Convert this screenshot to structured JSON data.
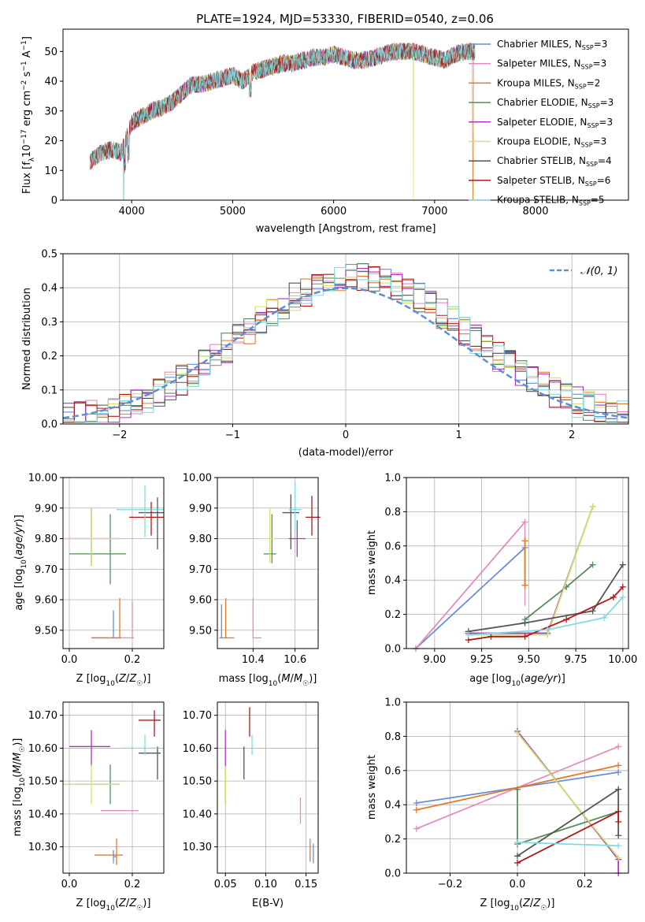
{
  "chart_data": [
    {
      "id": "spectrum",
      "type": "line",
      "title": "PLATE=1924, MJD=53330, FIBERID=0540, z=0.06",
      "xlabel": "wavelength [Angstrom, rest frame]",
      "ylabel": "Flux [f_λ 10^-17 erg cm^-2 s^-1 A^-1]",
      "xlim": [
        3320,
        8920
      ],
      "ylim": [
        0,
        57.5
      ],
      "xticks": [
        4000,
        5000,
        6000,
        7000,
        8000
      ],
      "yticks": [
        0,
        10,
        20,
        30,
        40,
        50
      ],
      "grid": false,
      "legend_position": "top-right",
      "continuum": {
        "x": [
          3590,
          3700,
          3800,
          3900,
          4000,
          4100,
          4200,
          4300,
          4400,
          4500,
          4600,
          4700,
          4800,
          4900,
          5000,
          5100,
          5200,
          5300,
          5400,
          5500,
          5600,
          5700,
          5800,
          5900,
          6000,
          6100,
          6200,
          6300,
          6400,
          6500,
          6600,
          6700,
          6800,
          6900,
          7000,
          7100,
          7200,
          7300,
          7400
        ],
        "y": [
          13,
          16,
          17,
          16,
          26,
          28,
          30,
          31,
          33,
          36,
          39,
          39,
          40,
          41,
          42,
          40,
          43,
          44,
          45,
          46,
          46,
          47,
          48,
          48,
          49,
          48,
          47,
          47,
          48,
          49,
          50,
          50,
          50,
          49,
          48,
          47,
          49,
          50,
          50
        ]
      },
      "series": [
        {
          "name": "Chabrier MILES, N_SSP=3",
          "color": "#6a8ed6",
          "label_main": "Chabrier MILES, N",
          "label_sub": "SSP",
          "label_tail": "=3"
        },
        {
          "name": "Salpeter MILES, N_SSP=3",
          "color": "#e38bc0",
          "label_main": "Salpeter MILES, N",
          "label_sub": "SSP",
          "label_tail": "=3"
        },
        {
          "name": "Kroupa MILES, N_SSP=2",
          "color": "#e37a2a",
          "label_main": "Kroupa MILES, N",
          "label_sub": "SSP",
          "label_tail": "=2"
        },
        {
          "name": "Chabrier ELODIE, N_SSP=3",
          "color": "#5a8c5e",
          "label_main": "Chabrier ELODIE, N",
          "label_sub": "SSP",
          "label_tail": "=3"
        },
        {
          "name": "Salpeter ELODIE, N_SSP=3",
          "color": "#b033c2",
          "label_main": "Salpeter ELODIE, N",
          "label_sub": "SSP",
          "label_tail": "=3"
        },
        {
          "name": "Kroupa ELODIE, N_SSP=3",
          "color": "#d0e36a",
          "label_main": "Kroupa ELODIE, N",
          "label_sub": "SSP",
          "label_tail": "=3"
        },
        {
          "name": "Chabrier STELIB, N_SSP=4",
          "color": "#555555",
          "label_main": "Chabrier STELIB, N",
          "label_sub": "SSP",
          "label_tail": "=4"
        },
        {
          "name": "Salpeter STELIB, N_SSP=6",
          "color": "#b0181c",
          "label_main": "Salpeter STELIB, N",
          "label_sub": "SSP",
          "label_tail": "=6"
        },
        {
          "name": "Kroupa STELIB, N_SSP=5",
          "color": "#80dce0",
          "label_main": "Kroupa STELIB, N",
          "label_sub": "SSP",
          "label_tail": "=5"
        }
      ]
    },
    {
      "id": "residuals",
      "type": "line",
      "xlabel": "(data-model)/error",
      "ylabel": "Normed distribution",
      "xlim": [
        -2.5,
        2.5
      ],
      "ylim": [
        0,
        0.5
      ],
      "xticks": [
        -2,
        -1,
        0,
        1,
        2
      ],
      "yticks": [
        0.0,
        0.1,
        0.2,
        0.3,
        0.4,
        0.5
      ],
      "grid": true,
      "legend_position": "top-right",
      "gaussian_legend": "N(0,1)",
      "gaussian_color": "#5b8fd6",
      "gaussian": {
        "mean": 0,
        "sigma": 1
      }
    },
    {
      "id": "age-vs-Z",
      "type": "scatter",
      "xlabel": "Z [log10(Z/Z☉)]",
      "ylabel": "age [log10(age/yr)]",
      "xlim": [
        -0.02,
        0.3
      ],
      "ylim": [
        9.44,
        10.0
      ],
      "xticks": [
        0.0,
        0.2
      ],
      "yticks": [
        9.5,
        9.6,
        9.7,
        9.8,
        9.9,
        10.0
      ],
      "grid": true,
      "points": [
        {
          "series": "Chabrier MILES",
          "x": 0.14,
          "y": 9.475,
          "xerr": [
            0.07,
            0.01
          ],
          "yerr": [
            0.0,
            0.09
          ]
        },
        {
          "series": "Salpeter MILES",
          "x": 0.2,
          "y": 9.475,
          "xerr": [
            0.05,
            0.005
          ],
          "yerr": [
            0.0,
            0.12
          ]
        },
        {
          "series": "Kroupa MILES",
          "x": 0.16,
          "y": 9.475,
          "xerr": [
            0.09,
            0.005
          ],
          "yerr": [
            0.0,
            0.13
          ]
        },
        {
          "series": "Chabrier ELODIE",
          "x": 0.13,
          "y": 9.75,
          "xerr": [
            0.13,
            0.05
          ],
          "yerr": [
            0.1,
            0.13
          ]
        },
        {
          "series": "Salpeter ELODIE",
          "x": 0.07,
          "y": 9.8,
          "xerr": [
            0.09,
            0.09
          ],
          "yerr": [
            0.09,
            0.1
          ]
        },
        {
          "series": "Kroupa ELODIE",
          "x": 0.07,
          "y": 9.8,
          "xerr": [
            0.09,
            0.09
          ],
          "yerr": [
            0.09,
            0.1
          ]
        },
        {
          "series": "Chabrier STELIB",
          "x": 0.28,
          "y": 9.885,
          "xerr": [
            0.06,
            0.02
          ],
          "yerr": [
            0.12,
            0.05
          ]
        },
        {
          "series": "Salpeter STELIB",
          "x": 0.26,
          "y": 9.87,
          "xerr": [
            0.07,
            0.04
          ],
          "yerr": [
            0.06,
            0.05
          ]
        },
        {
          "series": "Kroupa STELIB",
          "x": 0.24,
          "y": 9.895,
          "xerr": [
            0.09,
            0.06
          ],
          "yerr": [
            0.09,
            0.08
          ]
        }
      ]
    },
    {
      "id": "age-vs-mass",
      "type": "scatter",
      "xlabel": "mass [log10(M/M☉)]",
      "ylabel": "",
      "xlim": [
        10.23,
        10.71
      ],
      "ylim": [
        9.44,
        10.0
      ],
      "xticks": [
        10.4,
        10.6
      ],
      "yticks": [
        9.5,
        9.6,
        9.7,
        9.8,
        9.9,
        10.0
      ],
      "grid": true,
      "points": [
        {
          "series": "Chabrier MILES",
          "x": 10.25,
          "y": 9.475,
          "xerr": [
            0.01,
            0.03
          ],
          "yerr": [
            0.0,
            0.11
          ]
        },
        {
          "series": "Salpeter MILES",
          "x": 10.4,
          "y": 9.475,
          "xerr": [
            0.0,
            0.04
          ],
          "yerr": [
            0.0,
            0.13
          ]
        },
        {
          "series": "Kroupa MILES",
          "x": 10.27,
          "y": 9.475,
          "xerr": [
            0.01,
            0.04
          ],
          "yerr": [
            0.0,
            0.13
          ]
        },
        {
          "series": "Chabrier ELODIE",
          "x": 10.49,
          "y": 9.75,
          "xerr": [
            0.04,
            0.02
          ],
          "yerr": [
            0.03,
            0.13
          ]
        },
        {
          "series": "Salpeter ELODIE",
          "x": 10.61,
          "y": 9.8,
          "xerr": [
            0.04,
            0.04
          ],
          "yerr": [
            0.06,
            0.06
          ]
        },
        {
          "series": "Kroupa ELODIE",
          "x": 10.48,
          "y": 9.8,
          "xerr": [
            0.05,
            0.03
          ],
          "yerr": [
            0.08,
            0.1
          ]
        },
        {
          "series": "Chabrier STELIB",
          "x": 10.58,
          "y": 9.885,
          "xerr": [
            0.04,
            0.04
          ],
          "yerr": [
            0.12,
            0.06
          ]
        },
        {
          "series": "Salpeter STELIB",
          "x": 10.68,
          "y": 9.87,
          "xerr": [
            0.03,
            0.04
          ],
          "yerr": [
            0.06,
            0.07
          ]
        },
        {
          "series": "Kroupa STELIB",
          "x": 10.6,
          "y": 9.895,
          "xerr": [
            0.03,
            0.03
          ],
          "yerr": [
            0.07,
            0.09
          ]
        }
      ]
    },
    {
      "id": "mass-weight-vs-age",
      "type": "line",
      "xlabel": "age [log10(age/yr)]",
      "ylabel": "mass weight",
      "xlim": [
        8.85,
        10.03
      ],
      "ylim": [
        0,
        1.0
      ],
      "xticks": [
        9.0,
        9.25,
        9.5,
        9.75,
        10.0
      ],
      "yticks": [
        0.0,
        0.2,
        0.4,
        0.6,
        0.8,
        1.0
      ],
      "grid": true,
      "series": [
        {
          "name": "Chabrier MILES",
          "x": [
            8.9,
            9.48
          ],
          "y": [
            0.0,
            0.59
          ],
          "yerr_at": [
            9.48,
            0.43,
            0.68
          ]
        },
        {
          "name": "Salpeter MILES",
          "x": [
            8.9,
            9.48
          ],
          "y": [
            0.0,
            0.74
          ],
          "yerr_at": [
            9.48,
            0.25,
            0.74
          ]
        },
        {
          "name": "Kroupa MILES",
          "x": [
            9.48,
            9.48
          ],
          "y": [
            0.37,
            0.63
          ],
          "yerr_at": [
            9.48,
            0.37,
            0.63
          ]
        },
        {
          "name": "Chabrier ELODIE",
          "x": [
            9.48,
            9.7,
            9.84
          ],
          "y": [
            0.17,
            0.36,
            0.49
          ]
        },
        {
          "name": "Salpeter ELODIE",
          "x": [
            9.18,
            9.6,
            9.84
          ],
          "y": [
            0.09,
            0.09,
            0.83
          ]
        },
        {
          "name": "Kroupa ELODIE",
          "x": [
            9.18,
            9.6,
            9.84
          ],
          "y": [
            0.08,
            0.08,
            0.83
          ]
        },
        {
          "name": "Chabrier STELIB",
          "x": [
            9.18,
            9.48,
            9.84,
            10.0
          ],
          "y": [
            0.1,
            0.15,
            0.22,
            0.49
          ]
        },
        {
          "name": "Salpeter STELIB",
          "x": [
            9.18,
            9.3,
            9.48,
            9.7,
            9.95,
            10.0
          ],
          "y": [
            0.05,
            0.07,
            0.07,
            0.17,
            0.3,
            0.36
          ]
        },
        {
          "name": "Kroupa STELIB",
          "x": [
            9.18,
            9.6,
            9.9,
            10.0
          ],
          "y": [
            0.08,
            0.11,
            0.18,
            0.3
          ]
        }
      ]
    },
    {
      "id": "mass-vs-Z",
      "type": "scatter",
      "xlabel": "Z [log10(Z/Z☉)]",
      "ylabel": "mass [log10(M/M☉)]",
      "xlim": [
        -0.02,
        0.3
      ],
      "ylim": [
        10.22,
        10.74
      ],
      "xticks": [
        0.0,
        0.2
      ],
      "yticks": [
        10.3,
        10.4,
        10.5,
        10.6,
        10.7
      ],
      "grid": true,
      "points": [
        {
          "series": "Chabrier MILES",
          "x": 0.14,
          "y": 10.27,
          "xerr": [
            0.0,
            0.01
          ],
          "yerr": [
            0.02,
            0.02
          ]
        },
        {
          "series": "Salpeter MILES",
          "x": 0.16,
          "y": 10.41,
          "xerr": [
            0.06,
            0.06
          ],
          "yerr": [
            0.0,
            0.0
          ]
        },
        {
          "series": "Kroupa MILES",
          "x": 0.15,
          "y": 10.275,
          "xerr": [
            0.07,
            0.02
          ],
          "yerr": [
            0.03,
            0.05
          ]
        },
        {
          "series": "Chabrier ELODIE",
          "x": 0.13,
          "y": 10.49,
          "xerr": [
            0.13,
            0.03
          ],
          "yerr": [
            0.06,
            0.06
          ]
        },
        {
          "series": "Salpeter ELODIE",
          "x": 0.07,
          "y": 10.605,
          "xerr": [
            0.07,
            0.06
          ],
          "yerr": [
            0.06,
            0.05
          ]
        },
        {
          "series": "Kroupa ELODIE",
          "x": 0.07,
          "y": 10.49,
          "xerr": [
            0.09,
            0.09
          ],
          "yerr": [
            0.06,
            0.06
          ]
        },
        {
          "series": "Chabrier STELIB",
          "x": 0.28,
          "y": 10.585,
          "xerr": [
            0.06,
            0.01
          ],
          "yerr": [
            0.08,
            0.02
          ]
        },
        {
          "series": "Salpeter STELIB",
          "x": 0.27,
          "y": 10.685,
          "xerr": [
            0.05,
            0.02
          ],
          "yerr": [
            0.05,
            0.03
          ]
        },
        {
          "series": "Kroupa STELIB",
          "x": 0.24,
          "y": 10.6,
          "xerr": [
            0.07,
            0.04
          ],
          "yerr": [
            0.02,
            0.04
          ]
        }
      ]
    },
    {
      "id": "mass-vs-EBV",
      "type": "scatter",
      "xlabel": "E(B-V)",
      "ylabel": "",
      "xlim": [
        0.04,
        0.165
      ],
      "ylim": [
        10.22,
        10.74
      ],
      "xticks": [
        0.05,
        0.1,
        0.15
      ],
      "yticks": [
        10.3,
        10.4,
        10.5,
        10.6,
        10.7
      ],
      "grid": true,
      "points": [
        {
          "series": "Chabrier MILES",
          "x": 0.159,
          "y": 10.27,
          "yerr": [
            0.02,
            0.04
          ]
        },
        {
          "series": "Salpeter MILES",
          "x": 0.143,
          "y": 10.41,
          "yerr": [
            0.04,
            0.04
          ]
        },
        {
          "series": "Kroupa MILES",
          "x": 0.155,
          "y": 10.275,
          "yerr": [
            0.02,
            0.05
          ]
        },
        {
          "series": "Chabrier ELODIE",
          "x": 0.05,
          "y": 10.49,
          "yerr": [
            0.06,
            0.05
          ]
        },
        {
          "series": "Salpeter ELODIE",
          "x": 0.05,
          "y": 10.605,
          "yerr": [
            0.06,
            0.05
          ]
        },
        {
          "series": "Kroupa ELODIE",
          "x": 0.05,
          "y": 10.49,
          "yerr": [
            0.06,
            0.05
          ]
        },
        {
          "series": "Chabrier STELIB",
          "x": 0.073,
          "y": 10.585,
          "yerr": [
            0.08,
            0.02
          ]
        },
        {
          "series": "Salpeter STELIB",
          "x": 0.08,
          "y": 10.685,
          "yerr": [
            0.05,
            0.04
          ]
        },
        {
          "series": "Kroupa STELIB",
          "x": 0.083,
          "y": 10.6,
          "yerr": [
            0.02,
            0.04
          ]
        }
      ]
    },
    {
      "id": "mass-weight-vs-Z",
      "type": "line",
      "xlabel": "Z [log10(Z/Z☉)]",
      "ylabel": "mass weight",
      "xlim": [
        -0.33,
        0.33
      ],
      "ylim": [
        0,
        1.0
      ],
      "xticks": [
        -0.2,
        0.0,
        0.2
      ],
      "yticks": [
        0.0,
        0.2,
        0.4,
        0.6,
        0.8,
        1.0
      ],
      "grid": true,
      "series": [
        {
          "name": "Chabrier MILES",
          "x": [
            -0.3,
            0.3
          ],
          "y": [
            0.41,
            0.59
          ]
        },
        {
          "name": "Salpeter MILES",
          "x": [
            -0.3,
            0.3
          ],
          "y": [
            0.26,
            0.74
          ]
        },
        {
          "name": "Kroupa MILES",
          "x": [
            -0.3,
            0.3
          ],
          "y": [
            0.37,
            0.63
          ]
        },
        {
          "name": "Chabrier ELODIE",
          "x": [
            0.0,
            0.0,
            0.3
          ],
          "y": [
            0.49,
            0.17,
            0.36
          ]
        },
        {
          "name": "Salpeter ELODIE",
          "x": [
            0.0,
            0.3,
            0.3
          ],
          "y": [
            0.83,
            0.08,
            0.0
          ]
        },
        {
          "name": "Kroupa ELODIE",
          "x": [
            0.0,
            0.3
          ],
          "y": [
            0.82,
            0.09
          ]
        },
        {
          "name": "Chabrier STELIB",
          "x": [
            0.0,
            0.3,
            0.3
          ],
          "y": [
            0.1,
            0.49,
            0.22
          ]
        },
        {
          "name": "Salpeter STELIB",
          "x": [
            0.0,
            0.3,
            0.3
          ],
          "y": [
            0.06,
            0.36,
            0.3
          ]
        },
        {
          "name": "Kroupa STELIB",
          "x": [
            0.0,
            0.3
          ],
          "y": [
            0.18,
            0.16
          ]
        }
      ]
    }
  ]
}
